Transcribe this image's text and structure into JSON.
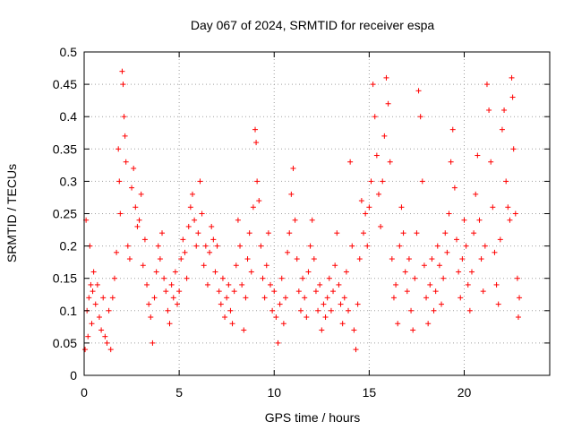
{
  "chart_data": {
    "type": "scatter",
    "title": "Day 067 of 2024, SRMTID for receiver espa",
    "xlabel": "GPS time / hours",
    "ylabel": "SRMTID / TECUs",
    "xlim": [
      0,
      24.5
    ],
    "ylim": [
      0,
      0.5
    ],
    "grid": true,
    "marker": "plus",
    "color": "#ff0000",
    "x_ticks": [
      0,
      5,
      10,
      15,
      20
    ],
    "x_tick_labels": [
      "0",
      "5",
      "10",
      "15",
      "20"
    ],
    "y_ticks": [
      0,
      0.05,
      0.1,
      0.15,
      0.2,
      0.25,
      0.3,
      0.35,
      0.4,
      0.45,
      0.5
    ],
    "y_tick_labels": [
      "0",
      "0.05",
      "0.1",
      "0.15",
      "0.2",
      "0.25",
      "0.3",
      "0.35",
      "0.4",
      "0.45",
      "0.5"
    ],
    "series": [
      {
        "name": "SRMTID",
        "points": [
          [
            0.05,
            0.04
          ],
          [
            0.1,
            0.24
          ],
          [
            0.15,
            0.1
          ],
          [
            0.2,
            0.06
          ],
          [
            0.25,
            0.12
          ],
          [
            0.3,
            0.2
          ],
          [
            0.35,
            0.14
          ],
          [
            0.4,
            0.08
          ],
          [
            0.45,
            0.13
          ],
          [
            0.5,
            0.16
          ],
          [
            0.6,
            0.11
          ],
          [
            0.7,
            0.14
          ],
          [
            0.8,
            0.09
          ],
          [
            0.9,
            0.07
          ],
          [
            1.0,
            0.12
          ],
          [
            1.1,
            0.06
          ],
          [
            1.2,
            0.05
          ],
          [
            1.3,
            0.1
          ],
          [
            1.4,
            0.04
          ],
          [
            1.5,
            0.12
          ],
          [
            1.6,
            0.15
          ],
          [
            1.7,
            0.19
          ],
          [
            1.8,
            0.35
          ],
          [
            1.85,
            0.3
          ],
          [
            1.9,
            0.25
          ],
          [
            2.0,
            0.47
          ],
          [
            2.05,
            0.45
          ],
          [
            2.1,
            0.4
          ],
          [
            2.15,
            0.37
          ],
          [
            2.2,
            0.33
          ],
          [
            2.3,
            0.2
          ],
          [
            2.4,
            0.18
          ],
          [
            2.5,
            0.29
          ],
          [
            2.6,
            0.32
          ],
          [
            2.7,
            0.26
          ],
          [
            2.8,
            0.23
          ],
          [
            2.9,
            0.24
          ],
          [
            3.0,
            0.28
          ],
          [
            3.1,
            0.17
          ],
          [
            3.2,
            0.21
          ],
          [
            3.3,
            0.14
          ],
          [
            3.4,
            0.11
          ],
          [
            3.5,
            0.09
          ],
          [
            3.6,
            0.05
          ],
          [
            3.7,
            0.12
          ],
          [
            3.8,
            0.16
          ],
          [
            3.9,
            0.2
          ],
          [
            4.0,
            0.18
          ],
          [
            4.1,
            0.22
          ],
          [
            4.2,
            0.15
          ],
          [
            4.3,
            0.13
          ],
          [
            4.4,
            0.1
          ],
          [
            4.5,
            0.08
          ],
          [
            4.6,
            0.14
          ],
          [
            4.7,
            0.12
          ],
          [
            4.8,
            0.16
          ],
          [
            4.9,
            0.11
          ],
          [
            5.0,
            0.13
          ],
          [
            5.1,
            0.18
          ],
          [
            5.2,
            0.21
          ],
          [
            5.3,
            0.19
          ],
          [
            5.4,
            0.15
          ],
          [
            5.5,
            0.23
          ],
          [
            5.6,
            0.26
          ],
          [
            5.7,
            0.28
          ],
          [
            5.8,
            0.24
          ],
          [
            5.9,
            0.2
          ],
          [
            6.0,
            0.22
          ],
          [
            6.1,
            0.3
          ],
          [
            6.2,
            0.25
          ],
          [
            6.3,
            0.17
          ],
          [
            6.4,
            0.2
          ],
          [
            6.5,
            0.14
          ],
          [
            6.6,
            0.19
          ],
          [
            6.7,
            0.23
          ],
          [
            6.8,
            0.21
          ],
          [
            6.9,
            0.16
          ],
          [
            7.0,
            0.2
          ],
          [
            7.1,
            0.13
          ],
          [
            7.2,
            0.11
          ],
          [
            7.3,
            0.15
          ],
          [
            7.4,
            0.09
          ],
          [
            7.5,
            0.12
          ],
          [
            7.6,
            0.14
          ],
          [
            7.7,
            0.1
          ],
          [
            7.8,
            0.08
          ],
          [
            7.9,
            0.13
          ],
          [
            8.0,
            0.17
          ],
          [
            8.1,
            0.24
          ],
          [
            8.2,
            0.2
          ],
          [
            8.3,
            0.14
          ],
          [
            8.4,
            0.07
          ],
          [
            8.5,
            0.12
          ],
          [
            8.6,
            0.18
          ],
          [
            8.7,
            0.22
          ],
          [
            8.8,
            0.16
          ],
          [
            8.9,
            0.26
          ],
          [
            9.0,
            0.38
          ],
          [
            9.05,
            0.36
          ],
          [
            9.1,
            0.3
          ],
          [
            9.2,
            0.27
          ],
          [
            9.3,
            0.2
          ],
          [
            9.4,
            0.15
          ],
          [
            9.5,
            0.12
          ],
          [
            9.6,
            0.17
          ],
          [
            9.7,
            0.22
          ],
          [
            9.8,
            0.14
          ],
          [
            9.9,
            0.1
          ],
          [
            10.0,
            0.13
          ],
          [
            10.1,
            0.09
          ],
          [
            10.2,
            0.05
          ],
          [
            10.3,
            0.11
          ],
          [
            10.4,
            0.15
          ],
          [
            10.5,
            0.08
          ],
          [
            10.6,
            0.12
          ],
          [
            10.7,
            0.19
          ],
          [
            10.8,
            0.22
          ],
          [
            10.9,
            0.28
          ],
          [
            11.0,
            0.32
          ],
          [
            11.1,
            0.24
          ],
          [
            11.2,
            0.18
          ],
          [
            11.3,
            0.13
          ],
          [
            11.4,
            0.1
          ],
          [
            11.5,
            0.15
          ],
          [
            11.6,
            0.12
          ],
          [
            11.7,
            0.09
          ],
          [
            11.8,
            0.16
          ],
          [
            11.9,
            0.2
          ],
          [
            12.0,
            0.24
          ],
          [
            12.1,
            0.18
          ],
          [
            12.2,
            0.13
          ],
          [
            12.3,
            0.1
          ],
          [
            12.4,
            0.14
          ],
          [
            12.5,
            0.07
          ],
          [
            12.6,
            0.11
          ],
          [
            12.7,
            0.09
          ],
          [
            12.8,
            0.12
          ],
          [
            12.9,
            0.15
          ],
          [
            13.0,
            0.1
          ],
          [
            13.1,
            0.13
          ],
          [
            13.2,
            0.17
          ],
          [
            13.3,
            0.22
          ],
          [
            13.4,
            0.14
          ],
          [
            13.5,
            0.11
          ],
          [
            13.6,
            0.08
          ],
          [
            13.7,
            0.12
          ],
          [
            13.8,
            0.16
          ],
          [
            13.9,
            0.1
          ],
          [
            14.0,
            0.33
          ],
          [
            14.1,
            0.2
          ],
          [
            14.2,
            0.07
          ],
          [
            14.3,
            0.04
          ],
          [
            14.4,
            0.11
          ],
          [
            14.5,
            0.18
          ],
          [
            14.6,
            0.27
          ],
          [
            14.7,
            0.22
          ],
          [
            14.8,
            0.25
          ],
          [
            14.9,
            0.2
          ],
          [
            15.0,
            0.26
          ],
          [
            15.1,
            0.3
          ],
          [
            15.2,
            0.45
          ],
          [
            15.3,
            0.4
          ],
          [
            15.4,
            0.34
          ],
          [
            15.5,
            0.28
          ],
          [
            15.6,
            0.23
          ],
          [
            15.7,
            0.3
          ],
          [
            15.8,
            0.37
          ],
          [
            15.9,
            0.46
          ],
          [
            16.0,
            0.42
          ],
          [
            16.1,
            0.33
          ],
          [
            16.2,
            0.18
          ],
          [
            16.3,
            0.12
          ],
          [
            16.4,
            0.14
          ],
          [
            16.5,
            0.08
          ],
          [
            16.6,
            0.2
          ],
          [
            16.7,
            0.26
          ],
          [
            16.8,
            0.22
          ],
          [
            16.9,
            0.16
          ],
          [
            17.0,
            0.13
          ],
          [
            17.1,
            0.18
          ],
          [
            17.2,
            0.1
          ],
          [
            17.3,
            0.07
          ],
          [
            17.4,
            0.15
          ],
          [
            17.5,
            0.22
          ],
          [
            17.6,
            0.44
          ],
          [
            17.7,
            0.4
          ],
          [
            17.8,
            0.3
          ],
          [
            17.9,
            0.17
          ],
          [
            18.0,
            0.12
          ],
          [
            18.1,
            0.08
          ],
          [
            18.2,
            0.14
          ],
          [
            18.3,
            0.18
          ],
          [
            18.4,
            0.1
          ],
          [
            18.5,
            0.13
          ],
          [
            18.6,
            0.2
          ],
          [
            18.7,
            0.17
          ],
          [
            18.8,
            0.11
          ],
          [
            18.9,
            0.15
          ],
          [
            19.0,
            0.22
          ],
          [
            19.1,
            0.19
          ],
          [
            19.2,
            0.25
          ],
          [
            19.3,
            0.33
          ],
          [
            19.4,
            0.38
          ],
          [
            19.5,
            0.29
          ],
          [
            19.6,
            0.21
          ],
          [
            19.7,
            0.16
          ],
          [
            19.8,
            0.12
          ],
          [
            19.9,
            0.18
          ],
          [
            20.0,
            0.24
          ],
          [
            20.1,
            0.2
          ],
          [
            20.2,
            0.14
          ],
          [
            20.3,
            0.1
          ],
          [
            20.4,
            0.16
          ],
          [
            20.5,
            0.22
          ],
          [
            20.6,
            0.28
          ],
          [
            20.7,
            0.34
          ],
          [
            20.8,
            0.24
          ],
          [
            20.9,
            0.18
          ],
          [
            21.0,
            0.13
          ],
          [
            21.1,
            0.2
          ],
          [
            21.2,
            0.45
          ],
          [
            21.3,
            0.41
          ],
          [
            21.4,
            0.33
          ],
          [
            21.5,
            0.26
          ],
          [
            21.6,
            0.19
          ],
          [
            21.7,
            0.14
          ],
          [
            21.8,
            0.11
          ],
          [
            21.9,
            0.21
          ],
          [
            22.0,
            0.38
          ],
          [
            22.1,
            0.41
          ],
          [
            22.2,
            0.3
          ],
          [
            22.3,
            0.26
          ],
          [
            22.4,
            0.24
          ],
          [
            22.5,
            0.46
          ],
          [
            22.55,
            0.43
          ],
          [
            22.6,
            0.35
          ],
          [
            22.7,
            0.25
          ],
          [
            22.8,
            0.15
          ],
          [
            22.85,
            0.09
          ],
          [
            22.9,
            0.12
          ]
        ]
      }
    ]
  }
}
